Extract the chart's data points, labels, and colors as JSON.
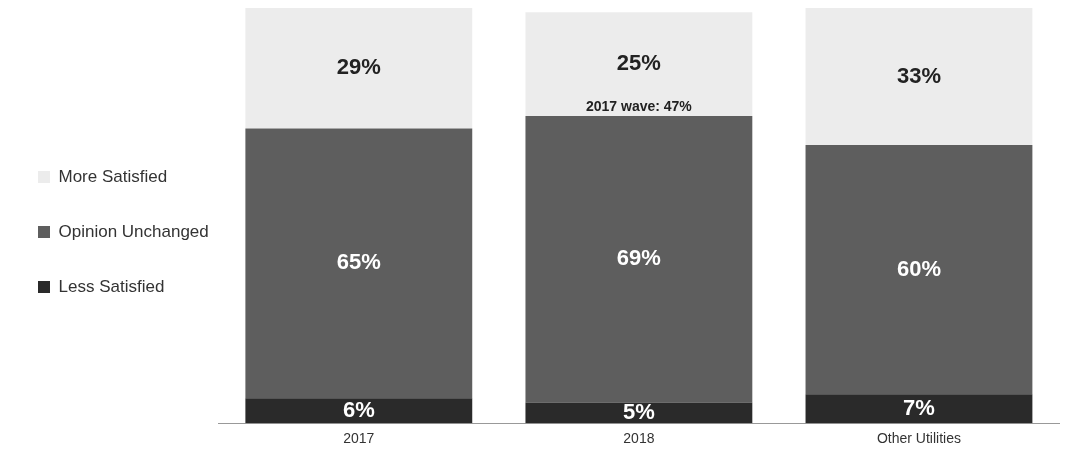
{
  "chart_data": {
    "type": "bar",
    "stacked": true,
    "categories": [
      "2017",
      "2018",
      "Other Utilities"
    ],
    "series": [
      {
        "name": "Less Satisfied",
        "color": "#2a2a2a",
        "values": [
          6,
          5,
          7
        ],
        "value_labels": [
          "6%",
          "5%",
          "7%"
        ]
      },
      {
        "name": "Opinion Unchanged",
        "color": "#5e5e5e",
        "values": [
          65,
          69,
          60
        ],
        "value_labels": [
          "65%",
          "69%",
          "60%"
        ]
      },
      {
        "name": "More Satisfied",
        "color": "#ececec",
        "values": [
          29,
          25,
          33
        ],
        "value_labels": [
          "29%",
          "25%",
          "33%"
        ]
      }
    ],
    "legend": "left",
    "grid": false,
    "annotations": [
      "2017 wave: 47%"
    ]
  }
}
